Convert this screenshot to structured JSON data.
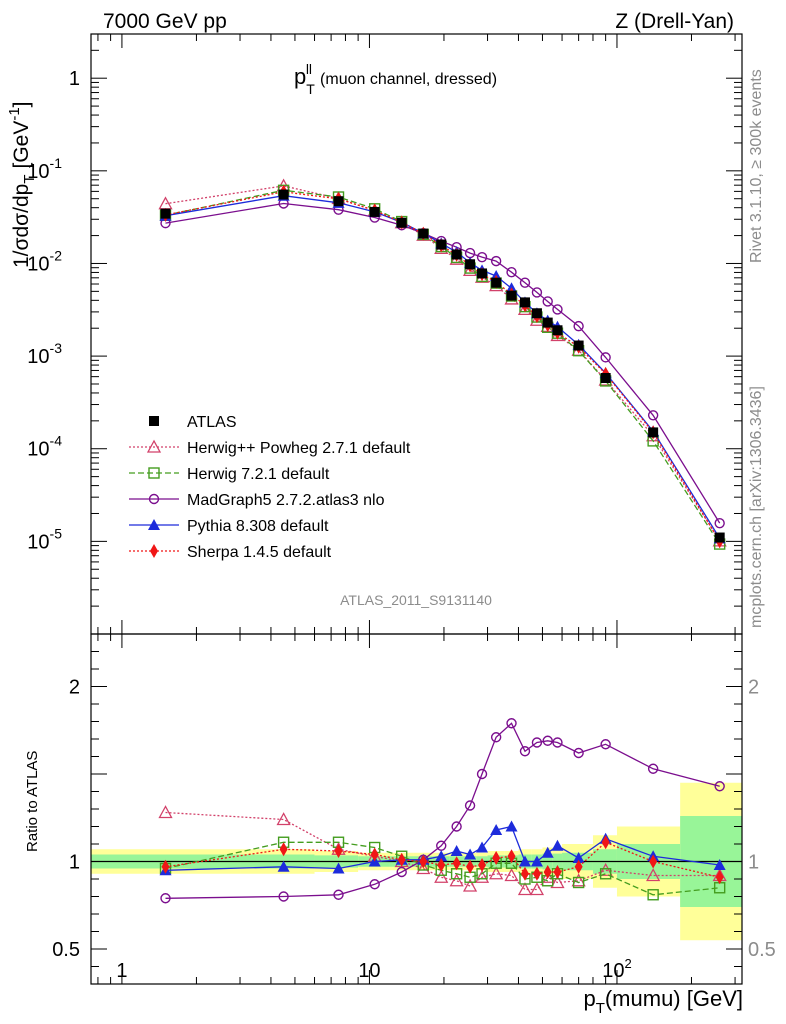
{
  "header": {
    "left": "7000 GeV pp",
    "right": "Z (Drell-Yan)"
  },
  "side_labels": {
    "rivet": "Rivet 3.1.10, ≥ 300k events",
    "mcplots": "mcplots.cern.ch [arXiv:1306.3436]"
  },
  "chart_data": {
    "type": "line",
    "title": "p_T^ll (muon channel, dressed)",
    "title_main": "p",
    "title_sub": "T",
    "title_sup": "ll",
    "title_rest": "(muon channel, dressed)",
    "analysis_id": "ATLAS_2011_S9131140",
    "xlabel": "p_T(mumu) [GeV]",
    "xlabel_main": "p",
    "xlabel_sub": "T",
    "xlabel_rest": "(mumu) [GeV]",
    "ylabel": "1/σdσ/dp_T [GeV^-1]",
    "ylabel_main": "1/σdσ/dp",
    "ylabel_sub": "T",
    "ylabel_rest": "[GeV",
    "ylabel_sup": "-1",
    "ylabel_close": "]",
    "ratio_ylabel": "Ratio to ATLAS",
    "xscale": "log",
    "xlim": [
      0.75,
      320
    ],
    "ylim": [
      1e-06,
      3
    ],
    "ratio_ylim": [
      0.3,
      2.3
    ],
    "x_ticks": [
      {
        "value": 1,
        "label": "1"
      },
      {
        "value": 10,
        "label": "10"
      },
      {
        "value": 100,
        "label": "10",
        "sup": "2"
      }
    ],
    "y_ticks": [
      {
        "value": 1,
        "label": "1"
      },
      {
        "value": 0.1,
        "label": "10",
        "sup": "-1"
      },
      {
        "value": 0.01,
        "label": "10",
        "sup": "-2"
      },
      {
        "value": 0.001,
        "label": "10",
        "sup": "-3"
      },
      {
        "value": 0.0001,
        "label": "10",
        "sup": "-4"
      },
      {
        "value": 1e-05,
        "label": "10",
        "sup": "-5"
      }
    ],
    "ratio_ticks": [
      {
        "value": 0.5,
        "label": "0.5"
      },
      {
        "value": 1,
        "label": "1"
      },
      {
        "value": 2,
        "label": "2"
      }
    ],
    "x": [
      1.5,
      4.5,
      7.5,
      10.5,
      13.5,
      16.5,
      19.5,
      22.5,
      25.5,
      28.5,
      32.5,
      37.5,
      42.5,
      47.5,
      52.5,
      57.5,
      70,
      90,
      140,
      260
    ],
    "x_edges": [
      0,
      3,
      6,
      9,
      12,
      15,
      18,
      21,
      24,
      27,
      30,
      35,
      40,
      45,
      50,
      55,
      60,
      80,
      100,
      180,
      350
    ],
    "data": {
      "name": "ATLAS",
      "values": [
        0.0345,
        0.0555,
        0.047,
        0.036,
        0.0275,
        0.021,
        0.016,
        0.0125,
        0.0098,
        0.0078,
        0.0062,
        0.0045,
        0.0038,
        0.0029,
        0.0023,
        0.0019,
        0.0013,
        0.00058,
        0.00015,
        1.1e-05
      ],
      "band_inner": [
        0.04,
        0.04,
        0.035,
        0.03,
        0.03,
        0.03,
        0.03,
        0.03,
        0.03,
        0.03,
        0.035,
        0.035,
        0.04,
        0.04,
        0.045,
        0.045,
        0.05,
        0.07,
        0.1,
        0.26
      ],
      "band_outer": [
        0.07,
        0.07,
        0.06,
        0.05,
        0.05,
        0.05,
        0.05,
        0.05,
        0.05,
        0.05,
        0.06,
        0.06,
        0.07,
        0.07,
        0.08,
        0.08,
        0.1,
        0.15,
        0.2,
        0.45
      ]
    },
    "series": [
      {
        "name": "Herwig++ Powheg 2.7.1 default",
        "color": "#d2416a",
        "dash": "2,2",
        "marker": "triangle-open",
        "ratio": [
          1.28,
          1.24,
          1.07,
          1.03,
          1.0,
          0.96,
          0.91,
          0.89,
          0.86,
          0.91,
          0.93,
          0.92,
          0.84,
          0.84,
          0.91,
          0.88,
          0.89,
          0.95,
          0.92,
          0.92
        ]
      },
      {
        "name": "Herwig 7.2.1 default",
        "color": "#449d1f",
        "dash": "6,3",
        "marker": "square-open",
        "ratio": [
          0.96,
          1.11,
          1.11,
          1.08,
          1.03,
          0.98,
          0.95,
          0.93,
          0.91,
          0.93,
          0.99,
          0.99,
          0.9,
          0.91,
          0.89,
          0.93,
          0.88,
          0.93,
          0.81,
          0.85
        ]
      },
      {
        "name": "MadGraph5 2.7.2.atlas3 nlo",
        "color": "#7b0e8e",
        "dash": "",
        "marker": "circle-open",
        "ratio": [
          0.79,
          0.8,
          0.81,
          0.87,
          0.94,
          1.01,
          1.09,
          1.2,
          1.32,
          1.5,
          1.71,
          1.79,
          1.63,
          1.68,
          1.69,
          1.68,
          1.62,
          1.67,
          1.53,
          1.43
        ]
      },
      {
        "name": "Pythia 8.308 default",
        "color": "#1d2bdb",
        "dash": "",
        "marker": "triangle",
        "ratio": [
          0.95,
          0.97,
          0.96,
          1.0,
          1.01,
          1.01,
          1.03,
          1.06,
          1.04,
          1.08,
          1.18,
          1.2,
          1.0,
          1.0,
          1.05,
          1.09,
          1.02,
          1.13,
          1.03,
          0.98
        ]
      },
      {
        "name": "Sherpa 1.4.5 default",
        "color": "#f01616",
        "dash": "2,2",
        "marker": "diamond",
        "ratio": [
          0.97,
          1.07,
          1.06,
          1.04,
          1.01,
          1.0,
          0.98,
          0.99,
          0.97,
          0.98,
          1.02,
          1.03,
          0.93,
          0.93,
          0.94,
          0.94,
          0.97,
          1.11,
          1.0,
          0.91
        ]
      }
    ]
  }
}
